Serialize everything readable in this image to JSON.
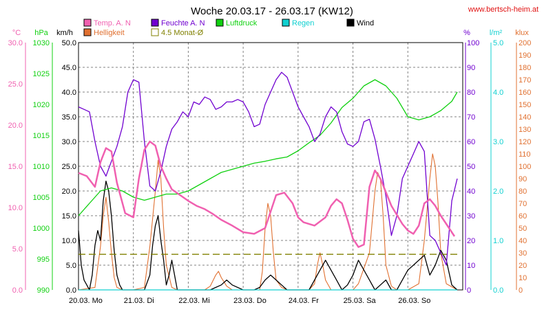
{
  "title": "Woche 20.03.17 - 26.03.17 (KW12)",
  "source": "www.bertsch-heim.at",
  "colors": {
    "temp": "#f060b0",
    "humidity": "#7000d0",
    "pressure": "#10d010",
    "rain": "#10d0d0",
    "wind": "#000000",
    "brightness": "#e07030",
    "avg": "#808000",
    "grid": "#808080"
  },
  "chart_data": {
    "type": "line",
    "title": "Woche 20.03.17 - 26.03.17 (KW12)",
    "grid": true,
    "legend_placement": "top",
    "x_ticks": [
      "20.03.  Mo",
      "21.03.  Di",
      "22.03.  Mi",
      "23.03.  Do",
      "24.03.  Fr",
      "25.03.  Sa",
      "26.03.  So"
    ],
    "axes": {
      "temp": {
        "unit": "°C",
        "min": 0,
        "max": 30,
        "ticks": [
          "0.0",
          "5.0",
          "10.0",
          "15.0",
          "20.0",
          "25.0",
          "30.0"
        ]
      },
      "pressure": {
        "unit": "hPa",
        "min": 990,
        "max": 1030,
        "ticks": [
          "990",
          "995",
          "1000",
          "1005",
          "1010",
          "1015",
          "1020",
          "1025",
          "1030"
        ]
      },
      "wind": {
        "unit": "km/h",
        "min": 0,
        "max": 50,
        "ticks": [
          "0.0",
          "5.0",
          "10.0",
          "15.0",
          "20.0",
          "25.0",
          "30.0",
          "35.0",
          "40.0",
          "45.0",
          "50.0"
        ]
      },
      "humidity": {
        "unit": "%",
        "min": 0,
        "max": 100,
        "ticks": [
          "0",
          "10",
          "20",
          "30",
          "40",
          "50",
          "60",
          "70",
          "80",
          "90",
          "100"
        ]
      },
      "rain": {
        "unit": "l/m²",
        "min": 0,
        "max": 5,
        "ticks": [
          "0.0",
          "1.0",
          "2.0",
          "3.0",
          "4.0",
          "5.0"
        ]
      },
      "brightness": {
        "unit": "klux",
        "min": 0,
        "max": 200,
        "ticks": [
          "0",
          "10",
          "20",
          "30",
          "40",
          "50",
          "60",
          "70",
          "80",
          "90",
          "100",
          "110",
          "120",
          "130",
          "140",
          "150",
          "160",
          "170",
          "180",
          "190",
          "200"
        ]
      }
    },
    "legend": [
      {
        "key": "temp",
        "label": "Temp. A. N"
      },
      {
        "key": "humidity",
        "label": "Feuchte A. N"
      },
      {
        "key": "pressure",
        "label": "Luftdruck"
      },
      {
        "key": "rain",
        "label": "Regen"
      },
      {
        "key": "wind",
        "label": "Wind"
      },
      {
        "key": "brightness",
        "label": "Helligkeit"
      },
      {
        "key": "avg",
        "label": "4.5 Monat-Ø"
      }
    ],
    "series": [
      {
        "key": "temp",
        "axis": "temp",
        "x": [
          0,
          0.15,
          0.3,
          0.4,
          0.5,
          0.6,
          0.7,
          0.85,
          1.0,
          1.1,
          1.2,
          1.3,
          1.4,
          1.5,
          1.6,
          1.7,
          1.85,
          2.0,
          2.15,
          2.3,
          2.45,
          2.6,
          2.8,
          3.0,
          3.2,
          3.4,
          3.5,
          3.6,
          3.75,
          3.9,
          4.0,
          4.1,
          4.3,
          4.5,
          4.6,
          4.7,
          4.8,
          4.9,
          5.0,
          5.1,
          5.2,
          5.3,
          5.4,
          5.5,
          5.7,
          5.9,
          6.0,
          6.1,
          6.2,
          6.3,
          6.4,
          6.5,
          6.6,
          6.7,
          6.85
        ],
        "y": [
          14.2,
          13.8,
          12.5,
          15.5,
          17.2,
          16.8,
          13.0,
          9.3,
          8.8,
          13.5,
          17.0,
          18.0,
          17.5,
          15.0,
          13.5,
          12.2,
          11.5,
          10.8,
          10.2,
          9.8,
          9.2,
          8.5,
          7.8,
          7.0,
          6.8,
          7.5,
          9.5,
          11.5,
          11.8,
          10.5,
          8.8,
          8.2,
          7.8,
          8.8,
          10.2,
          11.0,
          10.5,
          8.5,
          6.2,
          5.2,
          5.5,
          12.5,
          14.5,
          13.5,
          10.2,
          8.0,
          7.2,
          6.8,
          7.8,
          10.5,
          11.0,
          10.2,
          9.0,
          8.0,
          6.5
        ]
      },
      {
        "key": "humidity",
        "axis": "humidity",
        "x": [
          0,
          0.1,
          0.2,
          0.3,
          0.4,
          0.5,
          0.6,
          0.7,
          0.8,
          0.9,
          1.0,
          1.1,
          1.2,
          1.3,
          1.4,
          1.5,
          1.6,
          1.7,
          1.8,
          1.9,
          2.0,
          2.1,
          2.2,
          2.3,
          2.4,
          2.5,
          2.6,
          2.7,
          2.8,
          2.9,
          3.0,
          3.1,
          3.2,
          3.3,
          3.4,
          3.5,
          3.6,
          3.7,
          3.8,
          3.9,
          4.0,
          4.1,
          4.2,
          4.3,
          4.4,
          4.5,
          4.6,
          4.7,
          4.8,
          4.9,
          5.0,
          5.1,
          5.2,
          5.3,
          5.4,
          5.5,
          5.6,
          5.7,
          5.8,
          5.9,
          6.0,
          6.1,
          6.2,
          6.3,
          6.4,
          6.5,
          6.6,
          6.7,
          6.8,
          6.9
        ],
        "y": [
          74,
          73,
          72,
          60,
          50,
          46,
          52,
          58,
          66,
          80,
          85,
          84,
          60,
          42,
          40,
          48,
          58,
          65,
          68,
          72,
          70,
          76,
          75,
          78,
          77,
          73,
          74,
          76,
          76,
          77,
          76,
          72,
          66,
          67,
          75,
          80,
          85,
          88,
          86,
          80,
          74,
          70,
          66,
          60,
          63,
          70,
          74,
          72,
          64,
          59,
          58,
          60,
          68,
          69,
          61,
          50,
          38,
          22,
          30,
          45,
          50,
          55,
          60,
          56,
          22,
          20,
          15,
          10,
          36,
          45
        ]
      },
      {
        "key": "pressure",
        "axis": "pressure",
        "x": [
          0,
          0.2,
          0.4,
          0.6,
          0.8,
          1.0,
          1.2,
          1.4,
          1.6,
          1.8,
          2.0,
          2.2,
          2.4,
          2.6,
          2.8,
          3.0,
          3.2,
          3.4,
          3.6,
          3.8,
          4.0,
          4.2,
          4.4,
          4.6,
          4.8,
          5.0,
          5.2,
          5.4,
          5.6,
          5.8,
          6.0,
          6.2,
          6.4,
          6.6,
          6.8,
          6.9
        ],
        "y": [
          1002,
          1004,
          1006,
          1006.5,
          1006,
          1005,
          1004.5,
          1005,
          1005.5,
          1005.5,
          1006,
          1007,
          1008,
          1009,
          1009.5,
          1010,
          1010.5,
          1010.8,
          1011.2,
          1011.5,
          1012.5,
          1013.8,
          1015,
          1017,
          1019.5,
          1021,
          1023,
          1024,
          1023,
          1021,
          1018,
          1017.5,
          1018,
          1019,
          1020.5,
          1022
        ]
      },
      {
        "key": "rain",
        "axis": "rain",
        "x": [
          0,
          6.9
        ],
        "y": [
          0,
          0
        ]
      },
      {
        "key": "brightness",
        "axis": "brightness",
        "x": [
          0,
          0.3,
          0.4,
          0.45,
          0.5,
          0.55,
          0.6,
          0.65,
          0.7,
          0.8,
          1.0,
          1.2,
          1.3,
          1.4,
          1.45,
          1.5,
          1.55,
          1.6,
          1.7,
          1.8,
          2.0,
          2.3,
          2.4,
          2.5,
          2.55,
          2.6,
          2.7,
          2.8,
          3.0,
          3.3,
          3.35,
          3.4,
          3.45,
          3.5,
          3.55,
          3.6,
          3.7,
          3.8,
          4.0,
          4.2,
          4.3,
          4.35,
          4.4,
          4.45,
          4.5,
          4.6,
          4.8,
          5.0,
          5.1,
          5.3,
          5.4,
          5.45,
          5.5,
          5.55,
          5.6,
          5.7,
          5.8,
          5.9,
          6.0,
          6.2,
          6.3,
          6.4,
          6.45,
          6.5,
          6.55,
          6.6,
          6.7,
          6.9
        ],
        "y": [
          0,
          2,
          35,
          60,
          75,
          55,
          30,
          10,
          2,
          0,
          0,
          2,
          35,
          80,
          105,
          90,
          50,
          20,
          2,
          0,
          0,
          0,
          3,
          12,
          15,
          10,
          3,
          0,
          0,
          0,
          15,
          50,
          70,
          60,
          30,
          8,
          2,
          0,
          0,
          0,
          5,
          20,
          30,
          20,
          8,
          0,
          0,
          0,
          5,
          30,
          80,
          95,
          90,
          60,
          20,
          3,
          0,
          0,
          0,
          5,
          40,
          90,
          110,
          100,
          70,
          30,
          5,
          0
        ]
      },
      {
        "key": "wind",
        "axis": "wind",
        "x": [
          0,
          0.05,
          0.1,
          0.15,
          0.2,
          0.25,
          0.3,
          0.35,
          0.4,
          0.45,
          0.5,
          0.55,
          0.6,
          0.65,
          0.7,
          0.75,
          0.8,
          0.9,
          1.0,
          1.1,
          1.2,
          1.3,
          1.35,
          1.4,
          1.45,
          1.5,
          1.55,
          1.6,
          1.65,
          1.7,
          1.8,
          2.0,
          2.2,
          2.4,
          2.5,
          2.6,
          2.7,
          2.8,
          3.0,
          3.2,
          3.3,
          3.4,
          3.5,
          3.6,
          3.7,
          3.8,
          4.0,
          4.2,
          4.3,
          4.4,
          4.5,
          4.6,
          4.7,
          4.8,
          4.9,
          5.0,
          5.1,
          5.2,
          5.3,
          5.4,
          5.5,
          5.6,
          5.7,
          5.8,
          5.9,
          6.0,
          6.1,
          6.2,
          6.3,
          6.4,
          6.5,
          6.6,
          6.7,
          6.8,
          6.9
        ],
        "y": [
          12,
          5,
          2,
          1,
          0,
          3,
          9,
          12,
          10,
          18,
          22,
          20,
          15,
          8,
          3,
          1,
          0,
          0,
          0,
          0,
          0,
          3,
          9,
          13,
          15,
          10,
          6,
          1,
          3,
          6,
          0,
          0,
          0,
          0,
          0.5,
          1,
          2,
          1,
          0,
          0,
          0.5,
          2,
          3,
          2,
          1,
          0,
          0,
          0,
          2,
          4,
          6,
          4,
          2,
          0,
          1,
          3,
          6,
          4,
          2,
          0,
          1,
          2,
          0,
          0,
          2,
          4,
          5,
          6,
          7,
          3,
          5,
          8,
          6,
          1,
          0
        ]
      },
      {
        "key": "avg",
        "axis": "wind",
        "x": [
          0,
          6.9
        ],
        "y": [
          7.2,
          7.2
        ]
      }
    ]
  }
}
